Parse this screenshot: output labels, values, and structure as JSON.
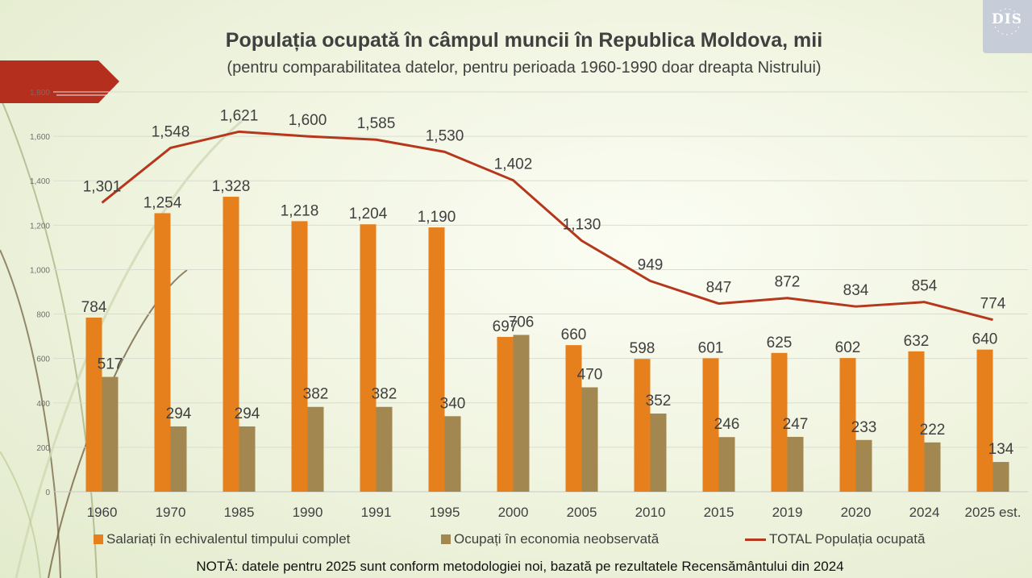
{
  "title": "Populația ocupată în câmpul muncii în Republica Moldova, mii",
  "subtitle": "(pentru comparabilitatea datelor, pentru perioada 1960-1990 doar dreapta Nistrului)",
  "note": "NOTĂ: datele pentru 2025 sunt conform metodologiei noi, bazată pe rezultatele Recensământului din 2024",
  "logo": {
    "text": "DIS"
  },
  "colors": {
    "salariati": "#e5801c",
    "neobservata": "#a38751",
    "total": "#b5371c",
    "background": "#f1f5e2",
    "arrow": "#b52f1f"
  },
  "chart_data": {
    "type": "bar",
    "categories": [
      "1960",
      "1970",
      "1985",
      "1990",
      "1991",
      "1995",
      "2000",
      "2005",
      "2010",
      "2015",
      "2019",
      "2020",
      "2024",
      "2025 est."
    ],
    "series": [
      {
        "name": "Salariați în echivalentul timpului complet",
        "type": "bar",
        "values": [
          784,
          1254,
          1328,
          1218,
          1204,
          1190,
          697,
          660,
          598,
          601,
          625,
          602,
          632,
          640
        ]
      },
      {
        "name": "Ocupați în economia neobservată",
        "type": "bar",
        "values": [
          517,
          294,
          294,
          382,
          382,
          340,
          706,
          470,
          352,
          246,
          247,
          233,
          222,
          134
        ]
      },
      {
        "name": "TOTAL Populația ocupată",
        "type": "line",
        "values": [
          1301,
          1548,
          1621,
          1600,
          1585,
          1530,
          1402,
          1130,
          949,
          847,
          872,
          834,
          854,
          774
        ]
      }
    ],
    "value_labels": {
      "salariati": [
        "784",
        "1,254",
        "1,328",
        "1,218",
        "1,204",
        "1,190",
        "697",
        "660",
        "598",
        "601",
        "625",
        "602",
        "632",
        "640"
      ],
      "neobservata": [
        "517",
        "294",
        "294",
        "382",
        "382",
        "340",
        "706",
        "470",
        "352",
        "246",
        "247",
        "233",
        "222",
        "134"
      ],
      "total": [
        "1,301",
        "1,548",
        "1,621",
        "1,600",
        "1,585",
        "1,530",
        "1,402",
        "1,130",
        "949",
        "847",
        "872",
        "834",
        "854",
        "774"
      ]
    },
    "yticks": [
      0,
      200,
      400,
      600,
      800,
      1000,
      1200,
      1400,
      1600,
      1800
    ],
    "ytick_labels": [
      "0",
      "200",
      "400",
      "600",
      "800",
      "1,000",
      "1,200",
      "1,400",
      "1,600",
      "1,800"
    ],
    "ylim": [
      0,
      1800
    ],
    "grid": true,
    "legend_position": "bottom"
  }
}
